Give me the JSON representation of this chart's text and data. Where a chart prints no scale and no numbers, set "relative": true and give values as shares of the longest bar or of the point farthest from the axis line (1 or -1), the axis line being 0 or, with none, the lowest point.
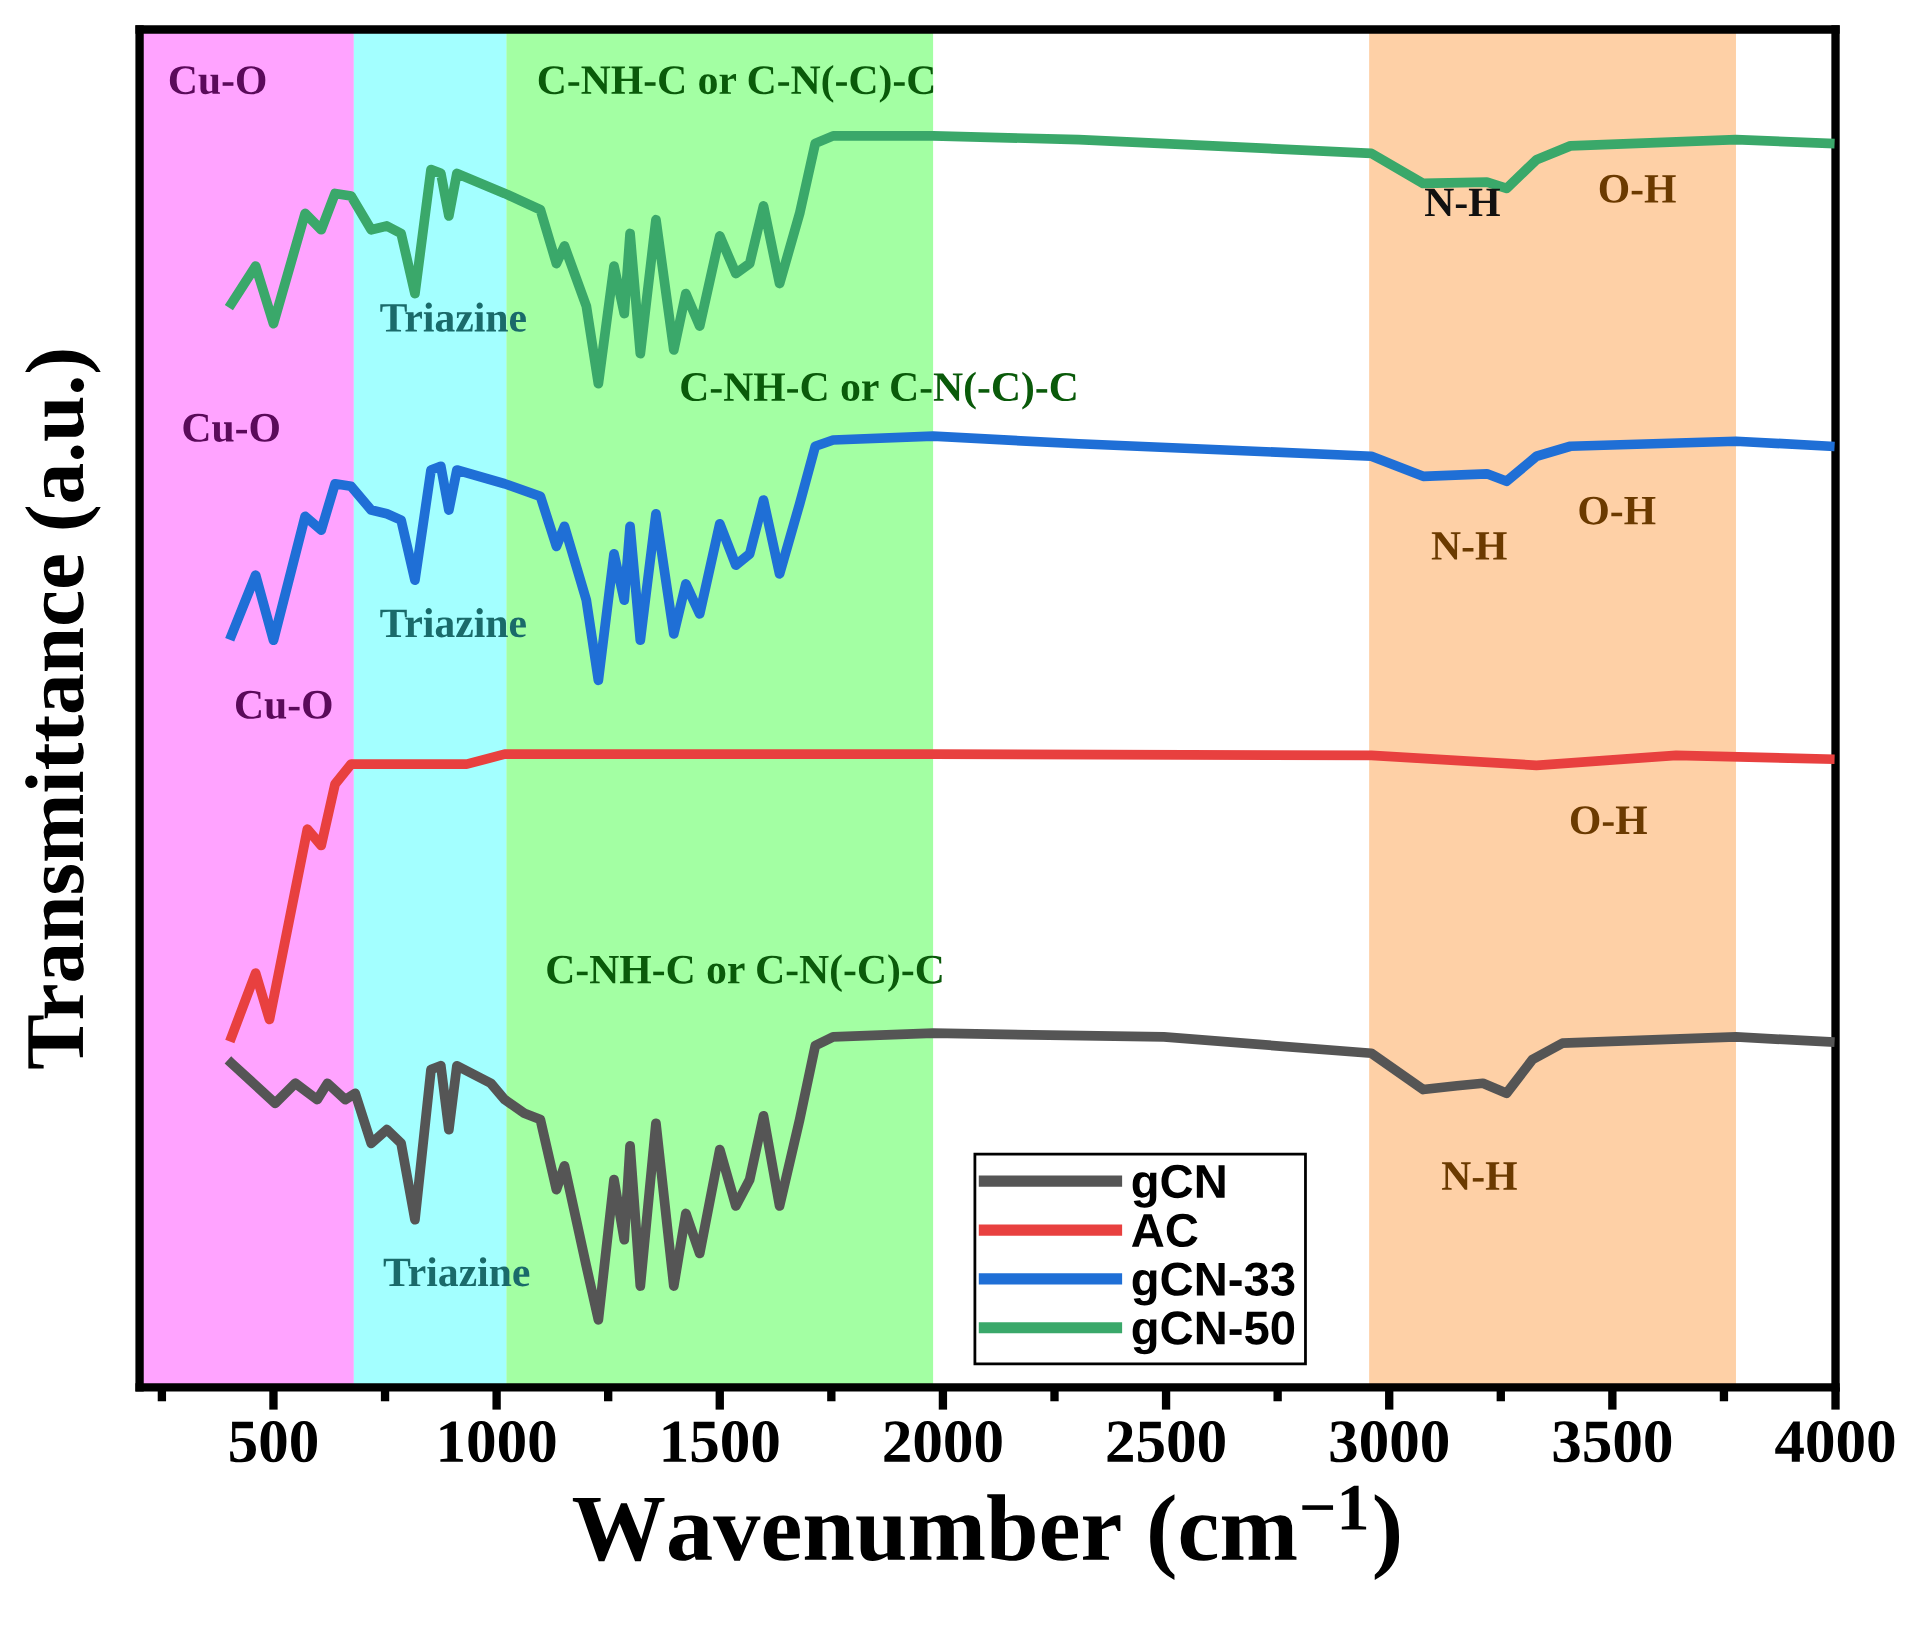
{
  "chart_data": {
    "type": "line",
    "xlabel": "Wavenumber (cm$^{−1}$)",
    "ylabel": "Transmittance (a.u.)",
    "relative": true,
    "xlim": [
      200,
      4000
    ],
    "xticks": [
      500,
      1000,
      1500,
      2000,
      2500,
      3000,
      3500,
      4000
    ],
    "tick_labels": "x",
    "grid": false,
    "legend": "bottom",
    "marker": "none",
    "line_style": "solid",
    "series": [
      {
        "name": "gCN",
        "color": "#555555",
        "x": [
          406,
          504,
          549,
          598,
          621,
          661,
          683,
          719,
          754,
          786,
          817,
          853,
          875,
          893,
          911,
          987,
          1018,
          1062,
          1098,
          1134,
          1152,
          1201,
          1228,
          1263,
          1286,
          1299,
          1322,
          1357,
          1397,
          1424,
          1455,
          1500,
          1536,
          1567,
          1598,
          1634,
          1679,
          1714,
          1754,
          1978,
          2495,
          2960,
          3076,
          3152,
          3210,
          3263,
          3321,
          3388,
          3777,
          3987
        ],
        "values": [
          0.259,
          0.227,
          0.243,
          0.23,
          0.243,
          0.23,
          0.235,
          0.195,
          0.206,
          0.195,
          0.134,
          0.254,
          0.257,
          0.206,
          0.257,
          0.243,
          0.23,
          0.219,
          0.214,
          0.158,
          0.177,
          0.097,
          0.054,
          0.166,
          0.118,
          0.193,
          0.081,
          0.211,
          0.081,
          0.139,
          0.107,
          0.19,
          0.145,
          0.166,
          0.217,
          0.145,
          0.214,
          0.273,
          0.28,
          0.283,
          0.28,
          0.267,
          0.238,
          0.241,
          0.243,
          0.235,
          0.262,
          0.275,
          0.28,
          0.276
        ]
      },
      {
        "name": "AC",
        "color": "#e8403f",
        "x": [
          406,
          460,
          491,
          576,
          607,
          638,
          674,
          933,
          1018,
          1978,
          2960,
          3330,
          3643,
          3987
        ],
        "values": [
          0.28,
          0.331,
          0.294,
          0.446,
          0.433,
          0.482,
          0.498,
          0.498,
          0.506,
          0.506,
          0.505,
          0.497,
          0.505,
          0.502
        ]
      },
      {
        "name": "gCN-33",
        "color": "#1f6fd6",
        "x": [
          406,
          460,
          500,
          571,
          607,
          638,
          674,
          719,
          754,
          786,
          817,
          853,
          875,
          893,
          911,
          1018,
          1098,
          1134,
          1152,
          1201,
          1228,
          1263,
          1286,
          1299,
          1322,
          1357,
          1397,
          1424,
          1455,
          1500,
          1536,
          1567,
          1598,
          1634,
          1679,
          1714,
          1754,
          1978,
          2304,
          2960,
          3076,
          3219,
          3263,
          3330,
          3406,
          3777,
          3987
        ],
        "values": [
          0.601,
          0.649,
          0.597,
          0.696,
          0.685,
          0.722,
          0.72,
          0.701,
          0.698,
          0.693,
          0.645,
          0.733,
          0.736,
          0.701,
          0.733,
          0.722,
          0.712,
          0.672,
          0.688,
          0.629,
          0.565,
          0.666,
          0.629,
          0.688,
          0.597,
          0.698,
          0.602,
          0.642,
          0.618,
          0.69,
          0.657,
          0.666,
          0.709,
          0.65,
          0.706,
          0.752,
          0.757,
          0.76,
          0.754,
          0.744,
          0.728,
          0.73,
          0.724,
          0.744,
          0.752,
          0.756,
          0.752
        ]
      },
      {
        "name": "gCN-50",
        "color": "#3aa86a",
        "x": [
          406,
          460,
          500,
          571,
          607,
          638,
          674,
          719,
          754,
          786,
          817,
          853,
          875,
          893,
          911,
          1018,
          1098,
          1134,
          1152,
          1201,
          1228,
          1263,
          1286,
          1299,
          1322,
          1357,
          1397,
          1424,
          1455,
          1500,
          1536,
          1567,
          1598,
          1634,
          1679,
          1714,
          1754,
          1978,
          2304,
          2960,
          3076,
          3219,
          3263,
          3330,
          3406,
          3777,
          3987
        ],
        "values": [
          0.866,
          0.896,
          0.85,
          0.938,
          0.925,
          0.954,
          0.952,
          0.925,
          0.928,
          0.922,
          0.874,
          0.973,
          0.97,
          0.936,
          0.97,
          0.954,
          0.941,
          0.898,
          0.912,
          0.864,
          0.802,
          0.896,
          0.858,
          0.922,
          0.826,
          0.933,
          0.829,
          0.874,
          0.848,
          0.92,
          0.89,
          0.898,
          0.944,
          0.882,
          0.938,
          0.994,
          1.0,
          1.0,
          0.997,
          0.986,
          0.962,
          0.963,
          0.958,
          0.981,
          0.992,
          0.997,
          0.994
        ]
      }
    ],
    "bands": [
      {
        "axis": "x",
        "from": 200,
        "to": 680,
        "color": "#ff66ff"
      },
      {
        "axis": "x",
        "from": 680,
        "to": 1022,
        "color": "#66ffff"
      },
      {
        "axis": "x",
        "from": 1022,
        "to": 1978,
        "color": "#66ff66"
      },
      {
        "axis": "x",
        "from": 2955,
        "to": 3777,
        "color": "#fdb06a"
      }
    ],
    "annotations": [
      "Cu-O",
      "Triazine",
      "C-NH-C or C-N(-C)-C",
      "N-H",
      "O-H",
      "Cu-O",
      "C-NH-C or C-N(-C)-C",
      "Triazine",
      "N-H",
      "O-H",
      "Cu-O",
      "O-H",
      "C-NH-C or C-N(-C)-C",
      "Triazine",
      "N-H"
    ]
  }
}
